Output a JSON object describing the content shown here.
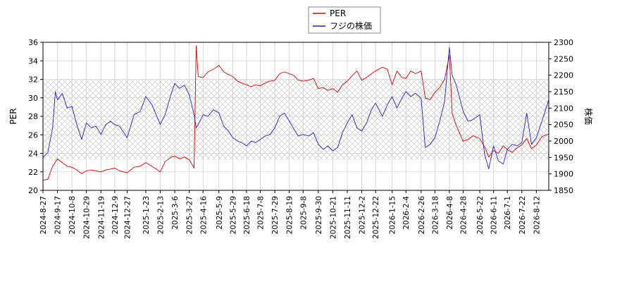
{
  "chart_data": {
    "type": "line",
    "xlabel": "",
    "ylabel_left": "PER",
    "ylabel_right": "株価",
    "ylim_left": [
      20,
      36
    ],
    "ylim_right": [
      1850,
      2300
    ],
    "yticks_left": [
      20,
      22,
      24,
      26,
      28,
      30,
      32,
      34,
      36
    ],
    "yticks_right": [
      1850,
      1900,
      1950,
      2000,
      2050,
      2100,
      2150,
      2200,
      2250,
      2300
    ],
    "x_range": [
      "2024-08-27",
      "2026-08-30"
    ],
    "x_ticks": [
      "2024-8-27",
      "2024-9-17",
      "2024-10-8",
      "2024-10-29",
      "2024-11-19",
      "2024-12-9",
      "2024-12-27",
      "2025-1-23",
      "2025-2-13",
      "2025-3-6",
      "2025-3-27",
      "2025-4-16",
      "2025-5-9",
      "2025-5-29",
      "2025-6-18",
      "2025-7-8",
      "2025-7-29",
      "2025-8-19",
      "2025-9-8",
      "2025-9-30",
      "2025-10-21",
      "2025-11-11",
      "2025-12-2",
      "2025-12-22",
      "2026-1-15",
      "2026-2-4",
      "2026-2-26",
      "2026-3-18",
      "2026-4-8",
      "2026-4-28",
      "2026-5-22",
      "2026-6-11",
      "2026-7-1",
      "2026-7-22",
      "2026-8-12"
    ],
    "shaded_band_left": [
      23.3,
      32.0
    ],
    "grid": true,
    "legend_position": "top-center",
    "series": [
      {
        "name": "PER",
        "axis": "left",
        "color": "#dd0000",
        "points": [
          [
            "2024-08-27",
            21.1
          ],
          [
            "2024-09-03",
            21.2
          ],
          [
            "2024-09-10",
            22.6
          ],
          [
            "2024-09-17",
            23.4
          ],
          [
            "2024-09-24",
            23.0
          ],
          [
            "2024-10-01",
            22.6
          ],
          [
            "2024-10-08",
            22.5
          ],
          [
            "2024-10-15",
            22.2
          ],
          [
            "2024-10-22",
            21.8
          ],
          [
            "2024-10-29",
            22.1
          ],
          [
            "2024-11-05",
            22.2
          ],
          [
            "2024-11-12",
            22.1
          ],
          [
            "2024-11-19",
            22.0
          ],
          [
            "2024-11-26",
            22.2
          ],
          [
            "2024-12-03",
            22.3
          ],
          [
            "2024-12-09",
            22.4
          ],
          [
            "2024-12-16",
            22.1
          ],
          [
            "2024-12-27",
            21.9
          ],
          [
            "2025-01-06",
            22.5
          ],
          [
            "2025-01-15",
            22.6
          ],
          [
            "2025-01-23",
            23.0
          ],
          [
            "2025-02-01",
            22.6
          ],
          [
            "2025-02-13",
            22.0
          ],
          [
            "2025-02-20",
            23.1
          ],
          [
            "2025-03-01",
            23.6
          ],
          [
            "2025-03-06",
            23.7
          ],
          [
            "2025-03-13",
            23.4
          ],
          [
            "2025-03-20",
            23.6
          ],
          [
            "2025-03-27",
            23.3
          ],
          [
            "2025-04-03",
            22.4
          ],
          [
            "2025-04-06",
            35.6
          ],
          [
            "2025-04-09",
            32.3
          ],
          [
            "2025-04-16",
            32.2
          ],
          [
            "2025-04-23",
            32.8
          ],
          [
            "2025-05-01",
            33.1
          ],
          [
            "2025-05-09",
            33.5
          ],
          [
            "2025-05-16",
            32.8
          ],
          [
            "2025-05-23",
            32.5
          ],
          [
            "2025-05-29",
            32.3
          ],
          [
            "2025-06-05",
            31.8
          ],
          [
            "2025-06-11",
            31.6
          ],
          [
            "2025-06-18",
            31.4
          ],
          [
            "2025-06-25",
            31.2
          ],
          [
            "2025-07-01",
            31.4
          ],
          [
            "2025-07-08",
            31.3
          ],
          [
            "2025-07-15",
            31.6
          ],
          [
            "2025-07-22",
            31.8
          ],
          [
            "2025-07-29",
            31.9
          ],
          [
            "2025-08-05",
            32.6
          ],
          [
            "2025-08-12",
            32.8
          ],
          [
            "2025-08-19",
            32.6
          ],
          [
            "2025-08-26",
            32.4
          ],
          [
            "2025-09-01",
            31.9
          ],
          [
            "2025-09-08",
            31.8
          ],
          [
            "2025-09-16",
            31.9
          ],
          [
            "2025-09-23",
            32.1
          ],
          [
            "2025-09-30",
            31.0
          ],
          [
            "2025-10-07",
            31.1
          ],
          [
            "2025-10-14",
            30.8
          ],
          [
            "2025-10-21",
            31.0
          ],
          [
            "2025-10-28",
            30.6
          ],
          [
            "2025-11-04",
            31.4
          ],
          [
            "2025-11-11",
            31.8
          ],
          [
            "2025-11-18",
            32.4
          ],
          [
            "2025-11-25",
            32.9
          ],
          [
            "2025-12-02",
            31.9
          ],
          [
            "2025-12-09",
            32.2
          ],
          [
            "2025-12-16",
            32.6
          ],
          [
            "2025-12-22",
            32.9
          ],
          [
            "2026-01-01",
            33.3
          ],
          [
            "2026-01-08",
            33.1
          ],
          [
            "2026-01-15",
            31.4
          ],
          [
            "2026-01-22",
            32.9
          ],
          [
            "2026-01-29",
            32.2
          ],
          [
            "2026-02-04",
            32.1
          ],
          [
            "2026-02-11",
            32.9
          ],
          [
            "2026-02-18",
            32.6
          ],
          [
            "2026-02-26",
            32.9
          ],
          [
            "2026-03-04",
            30.0
          ],
          [
            "2026-03-11",
            29.8
          ],
          [
            "2026-03-18",
            30.6
          ],
          [
            "2026-03-25",
            31.1
          ],
          [
            "2026-04-01",
            32.0
          ],
          [
            "2026-04-08",
            34.6
          ],
          [
            "2026-04-12",
            28.3
          ],
          [
            "2026-04-18",
            27.0
          ],
          [
            "2026-04-28",
            25.3
          ],
          [
            "2026-05-05",
            25.5
          ],
          [
            "2026-05-12",
            25.9
          ],
          [
            "2026-05-22",
            25.6
          ],
          [
            "2026-05-29",
            24.7
          ],
          [
            "2026-06-04",
            23.6
          ],
          [
            "2026-06-11",
            24.3
          ],
          [
            "2026-06-18",
            24.0
          ],
          [
            "2026-06-25",
            24.8
          ],
          [
            "2026-07-01",
            24.4
          ],
          [
            "2026-07-08",
            24.1
          ],
          [
            "2026-07-15",
            24.6
          ],
          [
            "2026-07-22",
            24.9
          ],
          [
            "2026-07-29",
            25.6
          ],
          [
            "2026-08-05",
            24.5
          ],
          [
            "2026-08-12",
            24.9
          ],
          [
            "2026-08-20",
            25.8
          ],
          [
            "2026-08-30",
            26.1
          ]
        ]
      },
      {
        "name": "フジの株価",
        "axis": "right",
        "color": "#2222cc",
        "points": [
          [
            "2024-08-27",
            1950
          ],
          [
            "2024-09-03",
            1965
          ],
          [
            "2024-09-10",
            2040
          ],
          [
            "2024-09-14",
            2150
          ],
          [
            "2024-09-17",
            2125
          ],
          [
            "2024-09-24",
            2145
          ],
          [
            "2024-10-01",
            2100
          ],
          [
            "2024-10-08",
            2105
          ],
          [
            "2024-10-15",
            2050
          ],
          [
            "2024-10-22",
            2005
          ],
          [
            "2024-10-29",
            2055
          ],
          [
            "2024-11-05",
            2040
          ],
          [
            "2024-11-12",
            2045
          ],
          [
            "2024-11-19",
            2020
          ],
          [
            "2024-11-26",
            2050
          ],
          [
            "2024-12-03",
            2060
          ],
          [
            "2024-12-09",
            2050
          ],
          [
            "2024-12-16",
            2045
          ],
          [
            "2024-12-27",
            2010
          ],
          [
            "2025-01-06",
            2080
          ],
          [
            "2025-01-15",
            2090
          ],
          [
            "2025-01-23",
            2135
          ],
          [
            "2025-02-01",
            2110
          ],
          [
            "2025-02-13",
            2050
          ],
          [
            "2025-02-20",
            2080
          ],
          [
            "2025-03-01",
            2145
          ],
          [
            "2025-03-06",
            2175
          ],
          [
            "2025-03-13",
            2160
          ],
          [
            "2025-03-20",
            2170
          ],
          [
            "2025-03-27",
            2140
          ],
          [
            "2025-04-03",
            2080
          ],
          [
            "2025-04-06",
            2040
          ],
          [
            "2025-04-09",
            2050
          ],
          [
            "2025-04-16",
            2080
          ],
          [
            "2025-04-23",
            2075
          ],
          [
            "2025-05-01",
            2095
          ],
          [
            "2025-05-09",
            2085
          ],
          [
            "2025-05-16",
            2045
          ],
          [
            "2025-05-23",
            2030
          ],
          [
            "2025-05-29",
            2010
          ],
          [
            "2025-06-05",
            2000
          ],
          [
            "2025-06-11",
            1995
          ],
          [
            "2025-06-18",
            1985
          ],
          [
            "2025-06-25",
            2000
          ],
          [
            "2025-07-01",
            1995
          ],
          [
            "2025-07-08",
            2005
          ],
          [
            "2025-07-15",
            2015
          ],
          [
            "2025-07-22",
            2020
          ],
          [
            "2025-07-29",
            2040
          ],
          [
            "2025-08-05",
            2075
          ],
          [
            "2025-08-12",
            2085
          ],
          [
            "2025-08-19",
            2060
          ],
          [
            "2025-08-26",
            2035
          ],
          [
            "2025-09-01",
            2015
          ],
          [
            "2025-09-08",
            2020
          ],
          [
            "2025-09-16",
            2015
          ],
          [
            "2025-09-23",
            2025
          ],
          [
            "2025-09-30",
            1990
          ],
          [
            "2025-10-07",
            1975
          ],
          [
            "2025-10-14",
            1985
          ],
          [
            "2025-10-21",
            1970
          ],
          [
            "2025-10-28",
            1980
          ],
          [
            "2025-11-04",
            2025
          ],
          [
            "2025-11-11",
            2055
          ],
          [
            "2025-11-18",
            2080
          ],
          [
            "2025-11-25",
            2040
          ],
          [
            "2025-12-02",
            2030
          ],
          [
            "2025-12-09",
            2055
          ],
          [
            "2025-12-16",
            2095
          ],
          [
            "2025-12-22",
            2115
          ],
          [
            "2026-01-01",
            2075
          ],
          [
            "2026-01-08",
            2110
          ],
          [
            "2026-01-15",
            2135
          ],
          [
            "2026-01-22",
            2100
          ],
          [
            "2026-01-29",
            2130
          ],
          [
            "2026-02-04",
            2150
          ],
          [
            "2026-02-11",
            2135
          ],
          [
            "2026-02-18",
            2145
          ],
          [
            "2026-02-26",
            2130
          ],
          [
            "2026-03-04",
            1980
          ],
          [
            "2026-03-11",
            1990
          ],
          [
            "2026-03-18",
            2010
          ],
          [
            "2026-03-25",
            2060
          ],
          [
            "2026-04-01",
            2120
          ],
          [
            "2026-04-08",
            2285
          ],
          [
            "2026-04-12",
            2200
          ],
          [
            "2026-04-18",
            2170
          ],
          [
            "2026-04-28",
            2090
          ],
          [
            "2026-05-05",
            2060
          ],
          [
            "2026-05-12",
            2065
          ],
          [
            "2026-05-22",
            2080
          ],
          [
            "2026-05-29",
            1960
          ],
          [
            "2026-06-04",
            1915
          ],
          [
            "2026-06-11",
            1985
          ],
          [
            "2026-06-18",
            1940
          ],
          [
            "2026-06-25",
            1930
          ],
          [
            "2026-07-01",
            1975
          ],
          [
            "2026-07-08",
            1990
          ],
          [
            "2026-07-15",
            1985
          ],
          [
            "2026-07-22",
            1995
          ],
          [
            "2026-07-29",
            2085
          ],
          [
            "2026-08-05",
            1990
          ],
          [
            "2026-08-12",
            2010
          ],
          [
            "2026-08-20",
            2060
          ],
          [
            "2026-08-30",
            2125
          ]
        ]
      }
    ]
  }
}
